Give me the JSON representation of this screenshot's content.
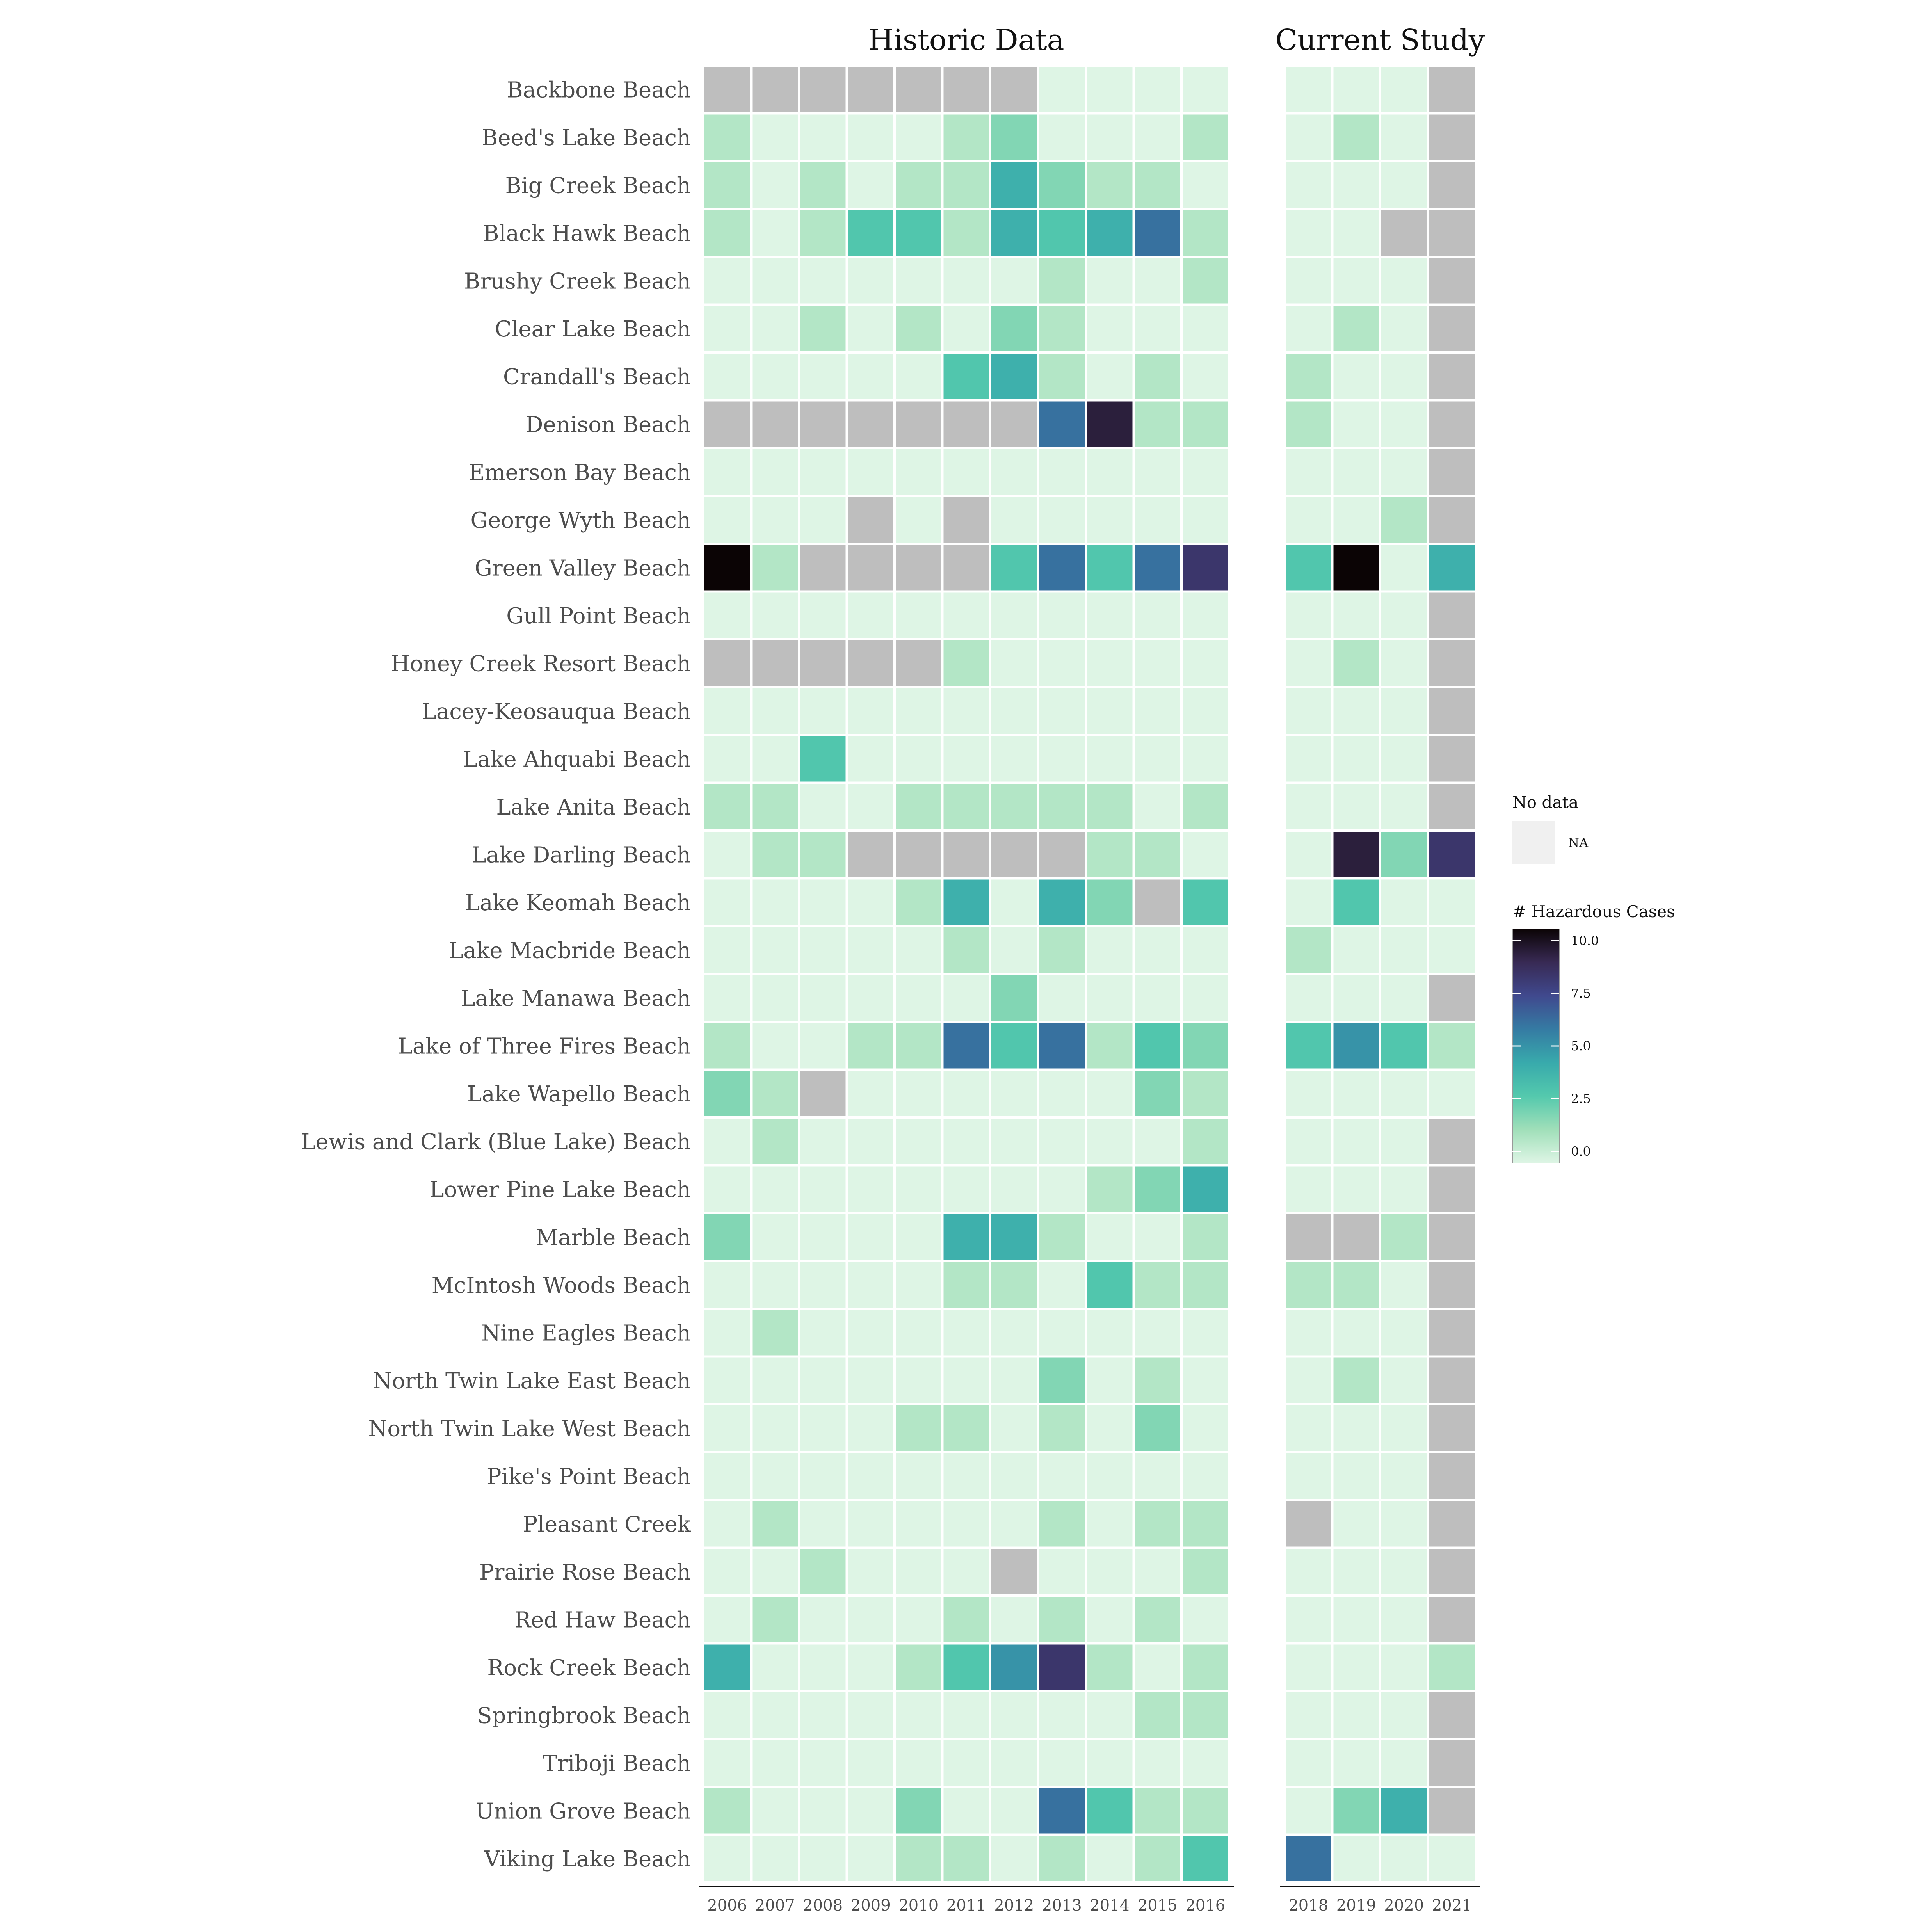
{
  "chart_data": {
    "type": "heatmap",
    "panels": [
      {
        "title": "Historic Data",
        "years": [
          "2006",
          "2007",
          "2008",
          "2009",
          "2010",
          "2011",
          "2012",
          "2013",
          "2014",
          "2015",
          "2016"
        ]
      },
      {
        "title": "Current Study",
        "years": [
          "2018",
          "2019",
          "2020",
          "2021"
        ]
      }
    ],
    "beaches": [
      "Backbone Beach",
      "Beed's Lake Beach",
      "Big Creek Beach",
      "Black Hawk Beach",
      "Brushy Creek Beach",
      "Clear Lake Beach",
      "Crandall's Beach",
      "Denison Beach",
      "Emerson Bay Beach",
      "George Wyth Beach",
      "Green Valley Beach",
      "Gull Point Beach",
      "Honey Creek Resort Beach",
      "Lacey-Keosauqua Beach",
      "Lake Ahquabi Beach",
      "Lake Anita Beach",
      "Lake Darling Beach",
      "Lake Keomah Beach",
      "Lake Macbride Beach",
      "Lake Manawa Beach",
      "Lake of Three Fires Beach",
      "Lake Wapello Beach",
      "Lewis and Clark (Blue Lake) Beach",
      "Lower Pine Lake Beach",
      "Marble Beach",
      "McIntosh Woods Beach",
      "Nine Eagles Beach",
      "North Twin Lake East Beach",
      "North Twin Lake West Beach",
      "Pike's Point Beach",
      "Pleasant Creek",
      "Prairie Rose Beach",
      "Red Haw Beach",
      "Rock Creek Beach",
      "Springbrook Beach",
      "Triboji Beach",
      "Union Grove Beach",
      "Viking Lake Beach"
    ],
    "historic_values": [
      [
        null,
        null,
        null,
        null,
        null,
        null,
        null,
        0,
        0,
        0,
        0
      ],
      [
        1,
        0,
        0,
        0,
        0,
        1,
        2,
        0,
        0,
        0,
        1
      ],
      [
        1,
        0,
        1,
        0,
        1,
        1,
        4,
        2,
        1,
        1,
        0
      ],
      [
        1,
        0,
        1,
        3,
        3,
        1,
        4,
        3,
        4,
        6,
        1
      ],
      [
        0,
        0,
        0,
        0,
        0,
        0,
        0,
        1,
        0,
        0,
        1
      ],
      [
        0,
        0,
        1,
        0,
        1,
        0,
        2,
        1,
        0,
        0,
        0
      ],
      [
        0,
        0,
        0,
        0,
        0,
        3,
        4,
        1,
        0,
        1,
        0
      ],
      [
        null,
        null,
        null,
        null,
        null,
        null,
        null,
        6,
        9,
        1,
        1
      ],
      [
        0,
        0,
        0,
        0,
        0,
        0,
        0,
        0,
        0,
        0,
        0
      ],
      [
        0,
        0,
        0,
        null,
        0,
        null,
        0,
        0,
        0,
        0,
        0
      ],
      [
        10,
        1,
        null,
        null,
        null,
        null,
        3,
        6,
        3,
        6,
        8
      ],
      [
        0,
        0,
        0,
        0,
        0,
        0,
        0,
        0,
        0,
        0,
        0
      ],
      [
        null,
        null,
        null,
        null,
        null,
        1,
        0,
        0,
        0,
        0,
        0
      ],
      [
        0,
        0,
        0,
        0,
        0,
        0,
        0,
        0,
        0,
        0,
        0
      ],
      [
        0,
        0,
        3,
        0,
        0,
        0,
        0,
        0,
        0,
        0,
        0
      ],
      [
        1,
        1,
        0,
        0,
        1,
        1,
        1,
        1,
        1,
        0,
        1
      ],
      [
        0,
        1,
        1,
        null,
        null,
        null,
        null,
        null,
        1,
        1,
        0
      ],
      [
        0,
        0,
        0,
        0,
        1,
        4,
        0,
        4,
        2,
        null,
        3
      ],
      [
        0,
        0,
        0,
        0,
        0,
        1,
        0,
        1,
        0,
        0,
        0
      ],
      [
        0,
        0,
        0,
        0,
        0,
        0,
        2,
        0,
        0,
        0,
        0
      ],
      [
        1,
        0,
        0,
        1,
        1,
        6,
        3,
        6,
        1,
        3,
        2
      ],
      [
        2,
        1,
        null,
        0,
        0,
        0,
        0,
        0,
        0,
        2,
        1
      ],
      [
        0,
        1,
        0,
        0,
        0,
        0,
        0,
        0,
        0,
        0,
        1
      ],
      [
        0,
        0,
        0,
        0,
        0,
        0,
        0,
        0,
        1,
        2,
        4
      ],
      [
        2,
        0,
        0,
        0,
        0,
        4,
        4,
        1,
        0,
        0,
        1
      ],
      [
        0,
        0,
        0,
        0,
        0,
        1,
        1,
        0,
        3,
        1,
        1
      ],
      [
        0,
        1,
        0,
        0,
        0,
        0,
        0,
        0,
        0,
        0,
        0
      ],
      [
        0,
        0,
        0,
        0,
        0,
        0,
        0,
        2,
        0,
        1,
        0
      ],
      [
        0,
        0,
        0,
        0,
        1,
        1,
        0,
        1,
        0,
        2,
        0
      ],
      [
        0,
        0,
        0,
        0,
        0,
        0,
        0,
        0,
        0,
        0,
        0
      ],
      [
        0,
        1,
        0,
        0,
        0,
        0,
        0,
        1,
        0,
        1,
        1
      ],
      [
        0,
        0,
        1,
        0,
        0,
        0,
        null,
        0,
        0,
        0,
        1
      ],
      [
        0,
        1,
        0,
        0,
        0,
        1,
        0,
        1,
        0,
        1,
        0
      ],
      [
        4,
        0,
        0,
        0,
        1,
        3,
        5,
        8,
        1,
        0,
        1
      ],
      [
        0,
        0,
        0,
        0,
        0,
        0,
        0,
        0,
        0,
        1,
        1
      ],
      [
        0,
        0,
        0,
        0,
        0,
        0,
        0,
        0,
        0,
        0,
        0
      ],
      [
        1,
        0,
        0,
        0,
        2,
        0,
        0,
        6,
        3,
        1,
        1
      ],
      [
        0,
        0,
        0,
        0,
        1,
        1,
        0,
        1,
        0,
        1,
        3
      ]
    ],
    "current_values": [
      [
        0,
        0,
        0,
        null
      ],
      [
        0,
        1,
        0,
        null
      ],
      [
        0,
        0,
        0,
        null
      ],
      [
        0,
        0,
        null,
        null
      ],
      [
        0,
        0,
        0,
        null
      ],
      [
        0,
        1,
        0,
        null
      ],
      [
        1,
        0,
        0,
        null
      ],
      [
        1,
        0,
        0,
        null
      ],
      [
        0,
        0,
        0,
        null
      ],
      [
        0,
        0,
        1,
        null
      ],
      [
        3,
        10,
        0,
        4
      ],
      [
        0,
        0,
        0,
        null
      ],
      [
        0,
        1,
        0,
        null
      ],
      [
        0,
        0,
        0,
        null
      ],
      [
        0,
        0,
        0,
        null
      ],
      [
        0,
        0,
        0,
        null
      ],
      [
        0,
        9,
        2,
        8
      ],
      [
        0,
        3,
        0,
        0
      ],
      [
        1,
        0,
        0,
        0
      ],
      [
        0,
        0,
        0,
        null
      ],
      [
        3,
        5,
        3,
        1
      ],
      [
        0,
        0,
        0,
        0
      ],
      [
        0,
        0,
        0,
        null
      ],
      [
        0,
        0,
        0,
        null
      ],
      [
        null,
        null,
        1,
        null
      ],
      [
        1,
        1,
        0,
        null
      ],
      [
        0,
        0,
        0,
        null
      ],
      [
        0,
        1,
        0,
        null
      ],
      [
        0,
        0,
        0,
        null
      ],
      [
        0,
        0,
        0,
        null
      ],
      [
        null,
        0,
        0,
        null
      ],
      [
        0,
        0,
        0,
        null
      ],
      [
        0,
        0,
        0,
        null
      ],
      [
        0,
        0,
        0,
        1
      ],
      [
        0,
        0,
        0,
        null
      ],
      [
        0,
        0,
        0,
        null
      ],
      [
        0,
        2,
        4,
        null
      ],
      [
        6,
        0,
        0,
        0
      ]
    ],
    "legend": {
      "na_title": "No data",
      "na_label": "NA",
      "scale_title": "# Hazardous Cases",
      "ticks": [
        "10.0",
        "7.5",
        "5.0",
        "2.5",
        "0.0"
      ],
      "range": [
        0,
        10
      ],
      "placement": "right"
    },
    "colors": {
      "na": "#bebebe",
      "na_key": "#f0f0f0",
      "scale": [
        "#def5e5",
        "#a0dfb9",
        "#54c9ad",
        "#38aaac",
        "#357ba3",
        "#40498e",
        "#382a54",
        "#0b0405"
      ]
    }
  }
}
